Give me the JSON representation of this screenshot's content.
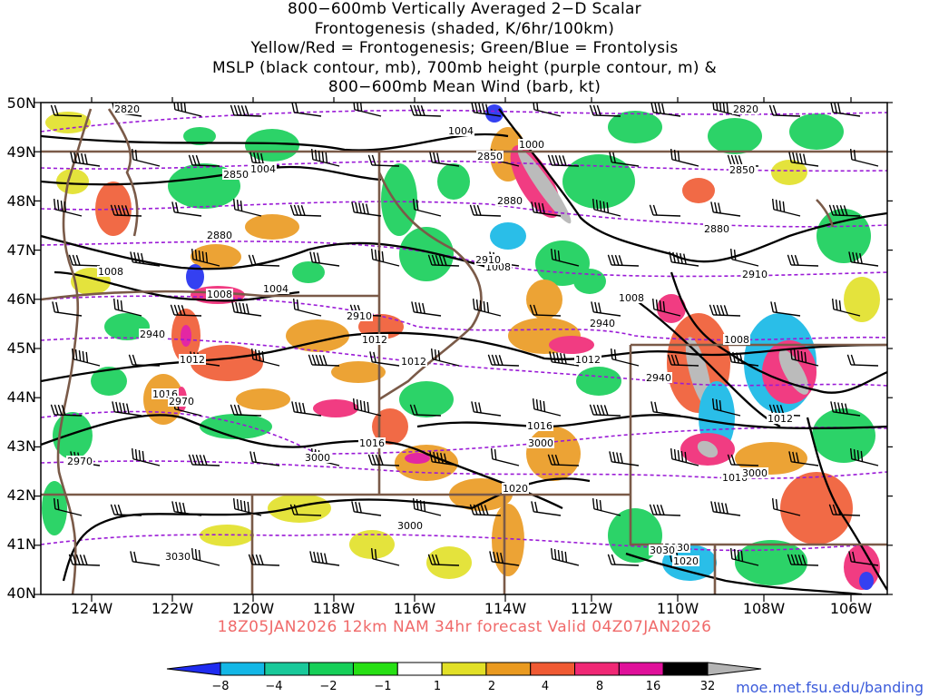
{
  "title_lines": [
    "800−600mb Vertically Averaged 2−D Scalar",
    "Frontogenesis (shaded, K/6hr/100km)",
    "Yellow/Red = Frontogenesis;  Green/Blue = Frontolysis",
    "MSLP (black contour, mb), 700mb height (purple contour, m) &",
    "800−600mb Mean Wind (barb, kt)"
  ],
  "lat_labels": [
    "50N",
    "49N",
    "48N",
    "47N",
    "46N",
    "45N",
    "44N",
    "43N",
    "42N",
    "41N",
    "40N"
  ],
  "lon_labels": [
    "124W",
    "122W",
    "120W",
    "118W",
    "116W",
    "114W",
    "112W",
    "110W",
    "108W",
    "106W"
  ],
  "valid_text": "18Z05JAN2026 12km NAM 34hr forecast Valid 04Z07JAN2026",
  "credit": "moe.met.fsu.edu/banding",
  "colorbar": {
    "labels": [
      "−8",
      "−4",
      "−2",
      "−1",
      "1",
      "2",
      "4",
      "8",
      "16",
      "32"
    ],
    "colors": [
      "#1f2cf0",
      "#13b7e6",
      "#19c99a",
      "#16cf58",
      "#27e014",
      "#ffffff",
      "#e2e027",
      "#ea9a20",
      "#f05a33",
      "#f02875",
      "#e0109a",
      "#000000",
      "#b4b4b4"
    ]
  },
  "pressure_labels": [
    "1000",
    "1004",
    "1004",
    "1004",
    "1008",
    "1008",
    "1008",
    "1008",
    "1008",
    "1012",
    "1012",
    "1012",
    "1012",
    "1012",
    "1016",
    "1016",
    "1016",
    "1016",
    "1020",
    "1020"
  ],
  "height_labels": [
    "2820",
    "2820",
    "2850",
    "2850",
    "2850",
    "2880",
    "2880",
    "2880",
    "2910",
    "2910",
    "2910",
    "2940",
    "2940",
    "2940",
    "2970",
    "2970",
    "3000",
    "3000",
    "3000",
    "3000",
    "3030",
    "3030",
    "3030"
  ],
  "colors": {
    "pressure_contour": "#000000",
    "height_contour": "#9a1ad6",
    "boundaries": "#7a5a48",
    "barbs": "#000000",
    "valid_text": "#f06a6a",
    "credit_text": "#3b5bdb"
  },
  "icons": {
    "wind_barb": "wind-barb-icon",
    "colorbar_low_arrow": "triangle-left-icon",
    "colorbar_high_arrow": "triangle-right-icon"
  }
}
